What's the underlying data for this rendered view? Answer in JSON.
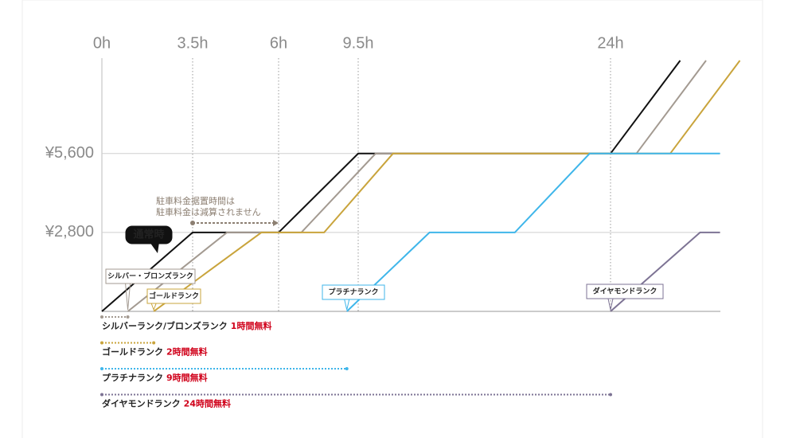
{
  "chart_data": {
    "type": "line",
    "xticks": [
      {
        "value": 0,
        "label": "0h"
      },
      {
        "value": 3.5,
        "label": "3.5h"
      },
      {
        "value": 6,
        "label": "6h"
      },
      {
        "value": 9.5,
        "label": "9.5h"
      },
      {
        "value": 24,
        "label": "24h"
      }
    ],
    "ylim": [
      0,
      8900
    ],
    "yticks": [
      {
        "value": 2800,
        "label": "¥2,800"
      },
      {
        "value": 5600,
        "label": "¥5,600"
      }
    ],
    "grid": true,
    "series": [
      {
        "name": "通常時",
        "color": "#111111",
        "x": [
          0,
          3.5,
          6,
          9.5,
          24,
          27.5
        ],
        "values": [
          0,
          2800,
          2800,
          5600,
          5600,
          8900
        ]
      },
      {
        "name": "シルバー・ブロンズランク",
        "color": "#a39a91",
        "x": [
          1,
          4.5,
          7,
          10.5,
          25.3,
          28.8
        ],
        "values": [
          0,
          2800,
          2800,
          5600,
          5600,
          8900
        ]
      },
      {
        "name": "ゴールドランク",
        "color": "#c9a43c",
        "x": [
          2,
          5.5,
          8,
          11.5,
          27,
          30.5
        ],
        "values": [
          0,
          2800,
          2800,
          5600,
          5600,
          8900
        ]
      },
      {
        "name": "プラチナランク",
        "color": "#3fb6ea",
        "x": [
          9,
          13.6,
          18.5,
          22.8,
          29.5
        ],
        "values": [
          0,
          2800,
          2800,
          5600,
          5600
        ]
      },
      {
        "name": "ダイヤモンドランク",
        "color": "#7d7394",
        "x": [
          24,
          28.5,
          29.5
        ],
        "values": [
          0,
          2800,
          2800
        ]
      }
    ],
    "annotation": {
      "lines": [
        "駐車料金据置時間は",
        "駐車料金は減算されません"
      ],
      "from": 3.5,
      "to": 6
    },
    "free_periods": [
      {
        "label": "シルバーランク/ブロンズランク",
        "note": "1時間無料",
        "hours": 1,
        "color": "#a39a91"
      },
      {
        "label": "ゴールドランク",
        "note": "2時間無料",
        "hours": 2,
        "color": "#c9a43c"
      },
      {
        "label": "プラチナランク",
        "note": "9時間無料",
        "hours": 9,
        "color": "#3fb6ea"
      },
      {
        "label": "ダイヤモンドランク",
        "note": "24時間無料",
        "hours": 24,
        "color": "#7d7394"
      }
    ]
  }
}
